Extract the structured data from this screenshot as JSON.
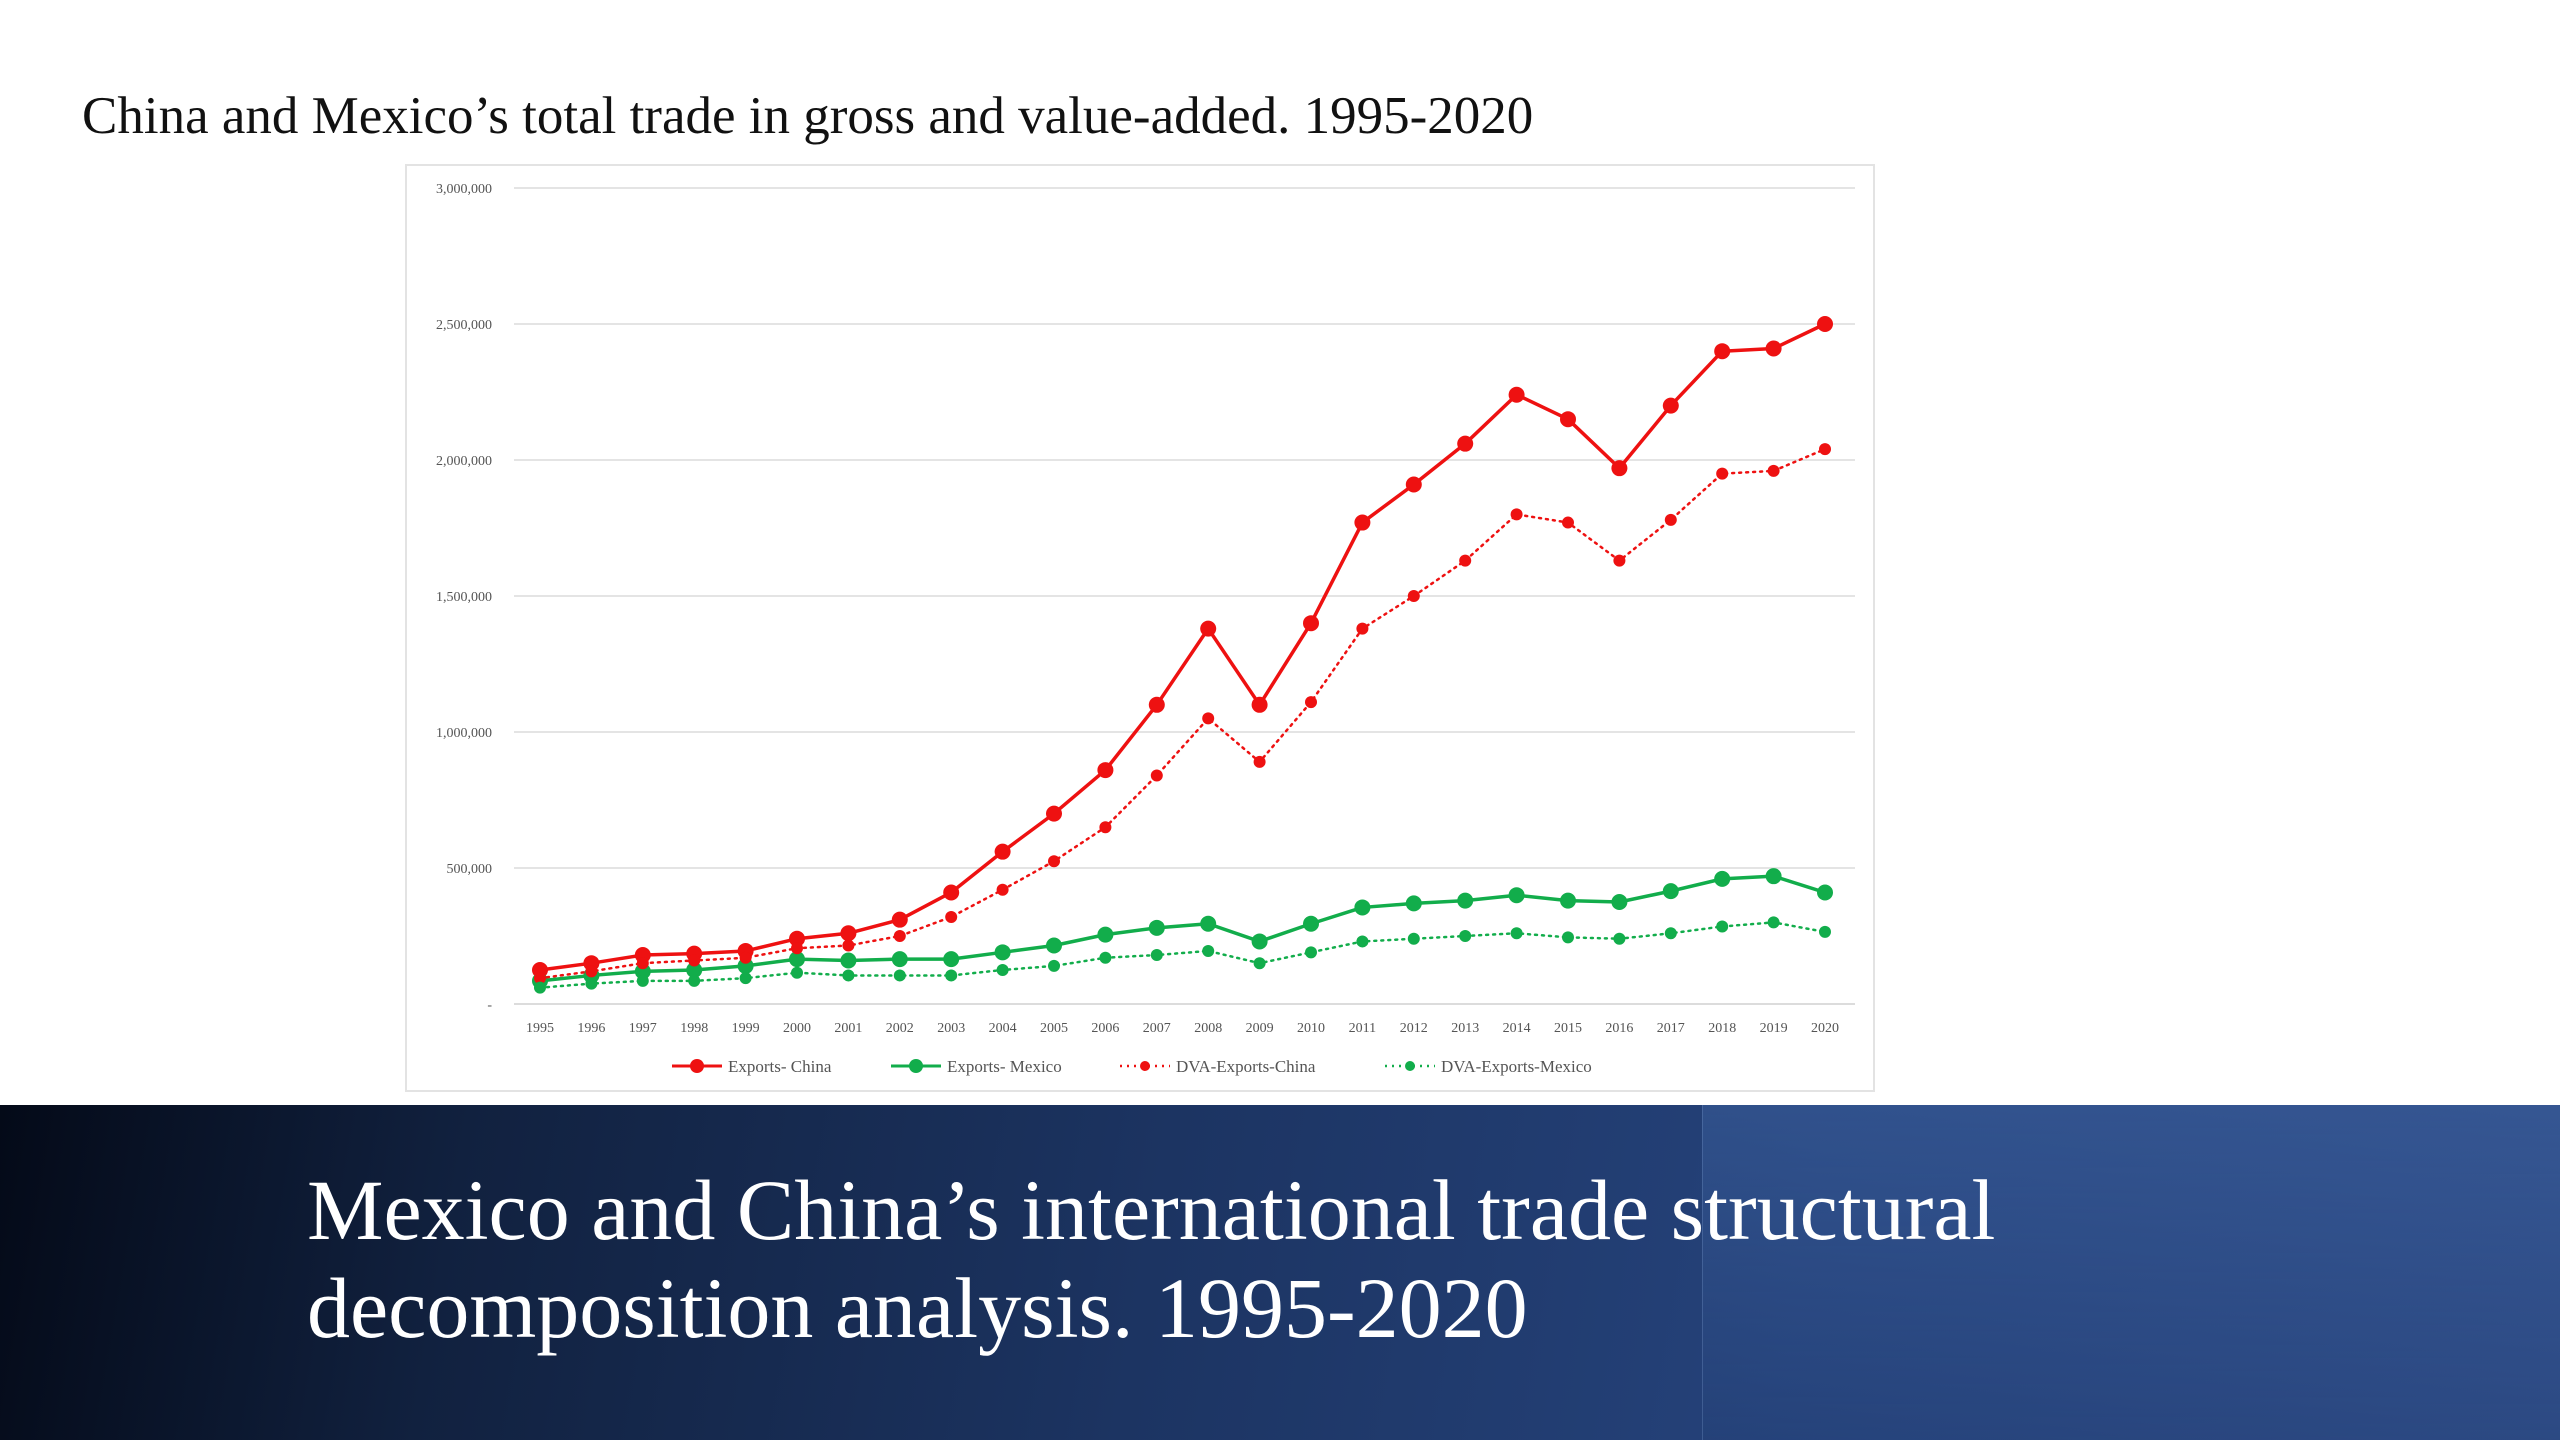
{
  "slide": {
    "heading": "China and Mexico’s total trade in gross and value-added. 1995-2020",
    "banner_title_line1": "Mexico and China’s international trade structural",
    "banner_title_line2": "decomposition analysis. 1995-2020",
    "banner_color": "#1c3462"
  },
  "chart_data": {
    "type": "line",
    "title": "",
    "xlabel": "",
    "ylabel": "",
    "x": [
      "1995",
      "1996",
      "1997",
      "1998",
      "1999",
      "2000",
      "2001",
      "2002",
      "2003",
      "2004",
      "2005",
      "2006",
      "2007",
      "2008",
      "2009",
      "2010",
      "2011",
      "2012",
      "2013",
      "2014",
      "2015",
      "2016",
      "2017",
      "2018",
      "2019",
      "2020"
    ],
    "ylim": [
      0,
      3000000
    ],
    "yticks": [
      0,
      500000,
      1000000,
      1500000,
      2000000,
      2500000,
      3000000
    ],
    "ytick_labels": [
      "-",
      "500,000",
      "1,000,000",
      "1,500,000",
      "2,000,000",
      "2,500,000",
      "3,000,000"
    ],
    "grid": "horizontal",
    "legend_position": "bottom",
    "series": [
      {
        "name": "Exports- China",
        "color": "#ee1111",
        "style": "solid",
        "values": [
          125000,
          150000,
          180000,
          185000,
          195000,
          240000,
          260000,
          310000,
          410000,
          560000,
          700000,
          860000,
          1100000,
          1380000,
          1100000,
          1400000,
          1770000,
          1910000,
          2060000,
          2240000,
          2150000,
          1970000,
          2200000,
          2400000,
          2410000,
          2500000
        ]
      },
      {
        "name": "Exports- Mexico",
        "color": "#12ad4b",
        "style": "solid",
        "values": [
          85000,
          105000,
          120000,
          125000,
          140000,
          165000,
          160000,
          165000,
          165000,
          190000,
          215000,
          255000,
          280000,
          295000,
          230000,
          295000,
          355000,
          370000,
          380000,
          400000,
          380000,
          375000,
          415000,
          460000,
          470000,
          410000
        ]
      },
      {
        "name": "DVA-Exports-China",
        "color": "#ee1111",
        "style": "dotted",
        "values": [
          95000,
          120000,
          150000,
          160000,
          170000,
          205000,
          215000,
          250000,
          320000,
          420000,
          525000,
          650000,
          840000,
          1050000,
          890000,
          1110000,
          1380000,
          1500000,
          1630000,
          1800000,
          1770000,
          1630000,
          1780000,
          1950000,
          1960000,
          2040000
        ]
      },
      {
        "name": "DVA-Exports-Mexico",
        "color": "#12ad4b",
        "style": "dotted",
        "values": [
          60000,
          75000,
          85000,
          85000,
          95000,
          115000,
          105000,
          105000,
          105000,
          125000,
          140000,
          170000,
          180000,
          195000,
          150000,
          190000,
          230000,
          240000,
          250000,
          260000,
          245000,
          240000,
          260000,
          285000,
          300000,
          265000
        ]
      }
    ]
  }
}
